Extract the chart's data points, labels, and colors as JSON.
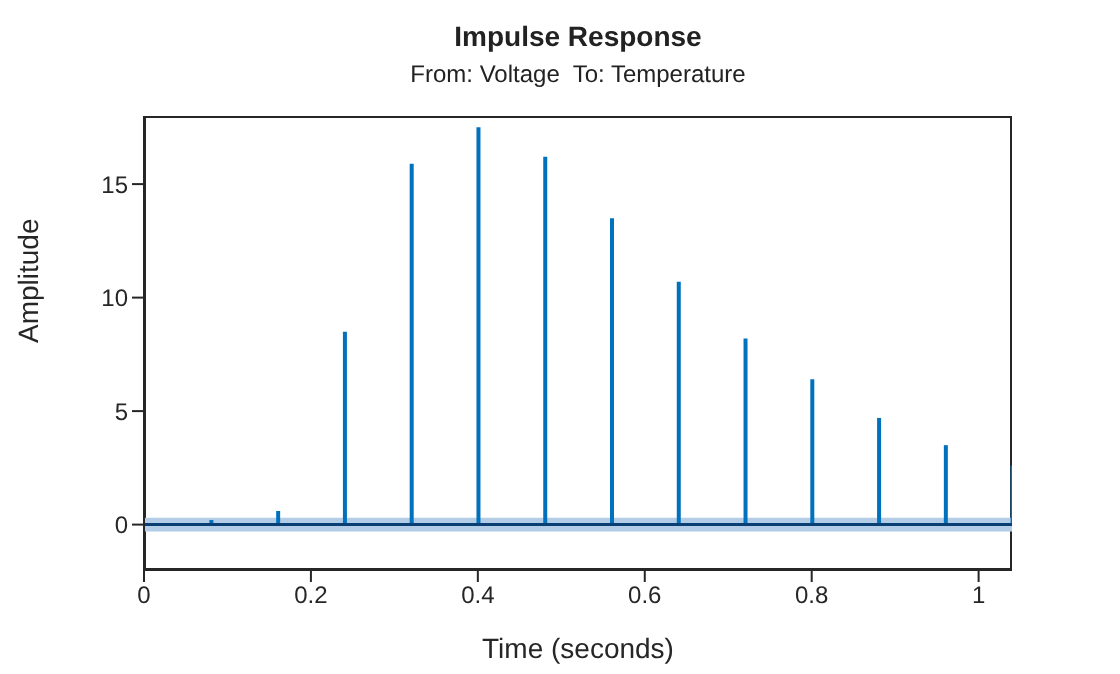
{
  "chart_data": {
    "type": "bar",
    "title": "Impulse Response",
    "subtitle": "From: Voltage  To: Temperature",
    "xlabel": "Time (seconds)",
    "ylabel": "Amplitude",
    "x": [
      0.08,
      0.16,
      0.24,
      0.32,
      0.4,
      0.48,
      0.56,
      0.64,
      0.72,
      0.8,
      0.88,
      0.96,
      1.04
    ],
    "series": [
      {
        "color": "#0072bd",
        "values": [
          0.2,
          0.6,
          8.5,
          15.9,
          17.5,
          16.2,
          13.5,
          10.7,
          8.2,
          6.4,
          4.7,
          3.5,
          2.6
        ]
      }
    ],
    "xlim": [
      0,
      1.04
    ],
    "xticks": [
      0,
      0.2,
      0.4,
      0.6,
      0.8,
      1
    ],
    "ylim": [
      -2,
      18
    ],
    "yticks": [
      0,
      5,
      10,
      15
    ],
    "legend": false,
    "ref_lines": [
      {
        "axis": "y",
        "value": 0,
        "color": "#0a3f73"
      }
    ],
    "bands": [
      {
        "axis": "y",
        "from": -0.3,
        "to": 0.3,
        "color": "#b3cde6"
      }
    ]
  }
}
